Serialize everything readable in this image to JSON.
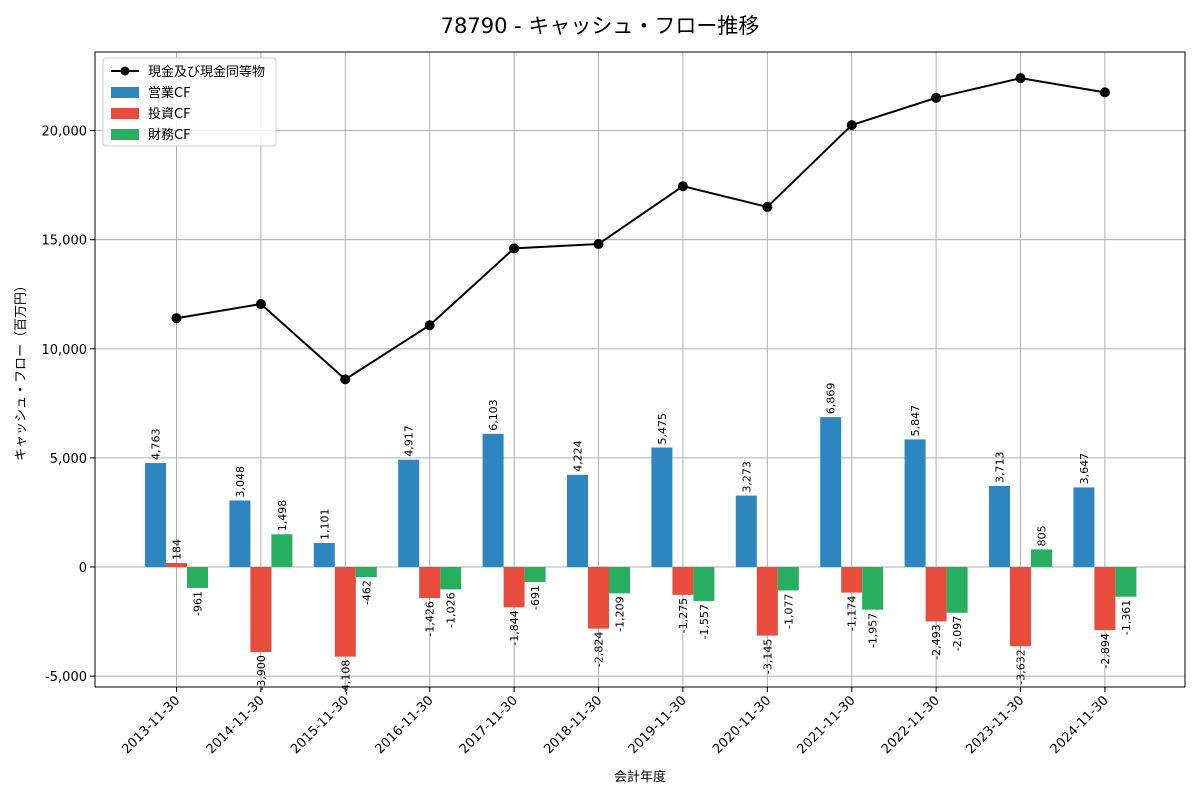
{
  "chart_data": {
    "type": "bar",
    "title": "78790 - キャッシュ・フロー推移",
    "xlabel": "会計年度",
    "ylabel": "キャッシュ・フロー（百万円）",
    "ylim": [
      -5500,
      23600
    ],
    "yticks": [
      -5000,
      0,
      5000,
      10000,
      15000,
      20000
    ],
    "ytick_labels": [
      "-5,000",
      "0",
      "5,000",
      "10,000",
      "15,000",
      "20,000"
    ],
    "grid": true,
    "legend_position": "top-left",
    "categories": [
      "2013-11-30",
      "2014-11-30",
      "2015-11-30",
      "2016-11-30",
      "2017-11-30",
      "2018-11-30",
      "2019-11-30",
      "2020-11-30",
      "2021-11-30",
      "2022-11-30",
      "2023-11-30",
      "2024-11-30"
    ],
    "series": [
      {
        "name": "営業CF",
        "kind": "bar",
        "color": "#2e86c1",
        "values": [
          4763,
          3048,
          1101,
          4917,
          6103,
          4224,
          5475,
          3273,
          6869,
          5847,
          3713,
          3647
        ],
        "labels": [
          "4,763",
          "3,048",
          "1,101",
          "4,917",
          "6,103",
          "4,224",
          "5,475",
          "3,273",
          "6,869",
          "5,847",
          "3,713",
          "3,647"
        ]
      },
      {
        "name": "投資CF",
        "kind": "bar",
        "color": "#e74c3c",
        "values": [
          184,
          -3900,
          -4108,
          -1426,
          -1844,
          -2824,
          -1275,
          -3145,
          -1174,
          -2493,
          -3632,
          -2894
        ],
        "labels": [
          "184",
          "-3,900",
          "-4,108",
          "-1,426",
          "-1,844",
          "-2,824",
          "-1,275",
          "-3,145",
          "-1,174",
          "-2,493",
          "-3,632",
          "-2,894"
        ]
      },
      {
        "name": "財務CF",
        "kind": "bar",
        "color": "#27ae60",
        "values": [
          -961,
          1498,
          -462,
          -1026,
          -691,
          -1209,
          -1557,
          -1077,
          -1957,
          -2097,
          805,
          -1361
        ],
        "labels": [
          "-961",
          "1,498",
          "-462",
          "-1,026",
          "-691",
          "-1,209",
          "-1,557",
          "-1,077",
          "-1,957",
          "-2,097",
          "805",
          "-1,361"
        ]
      },
      {
        "name": "現金及び現金同等物",
        "kind": "line",
        "color": "#000000",
        "values": [
          11400,
          12050,
          8600,
          11080,
          14600,
          14800,
          17450,
          16500,
          20250,
          21500,
          22400,
          21750
        ]
      }
    ]
  }
}
